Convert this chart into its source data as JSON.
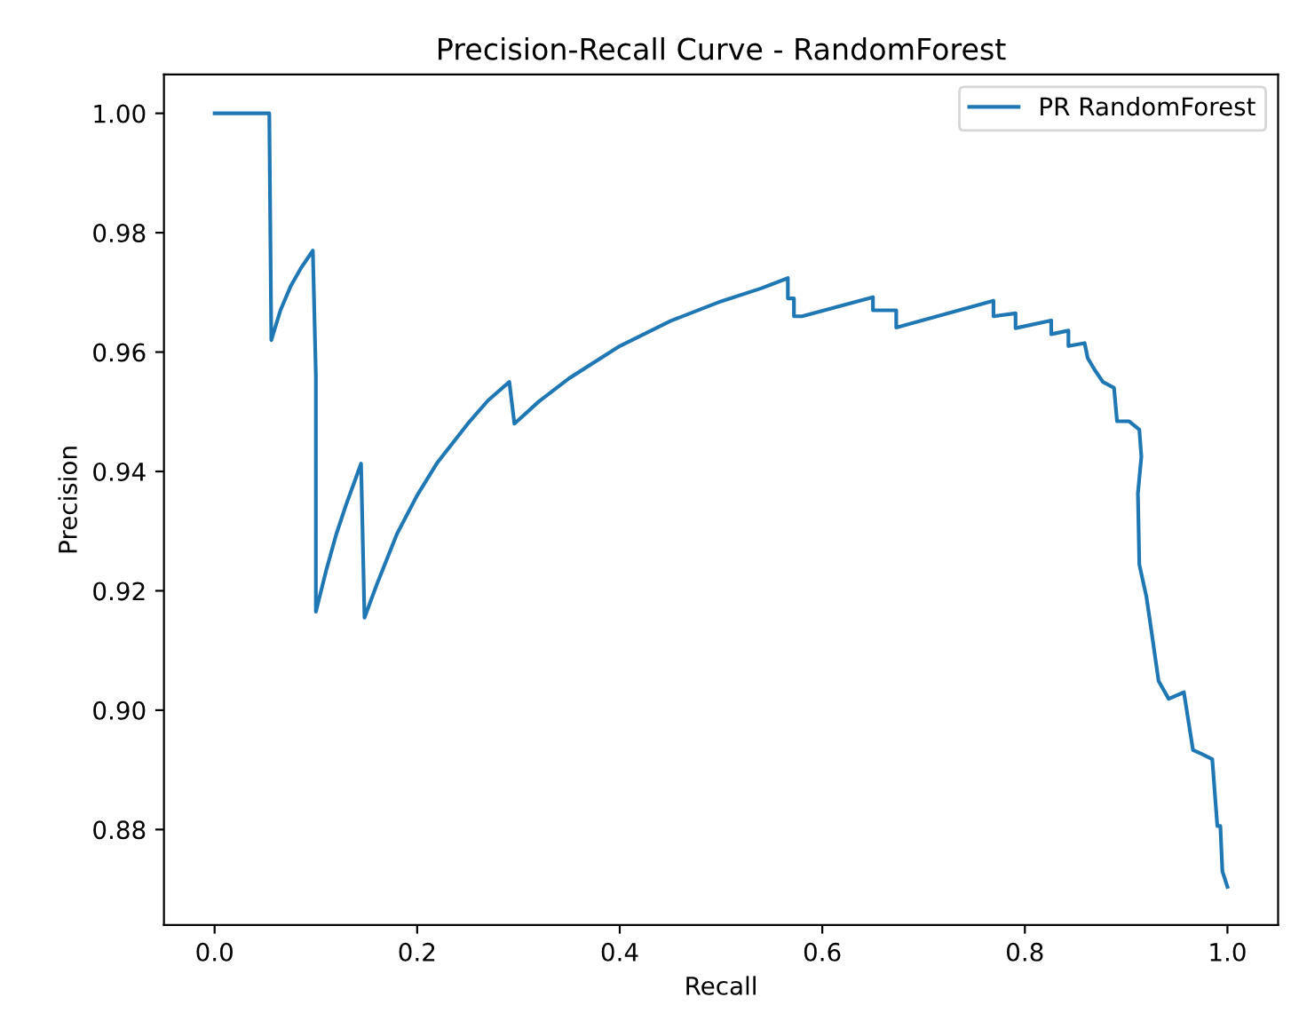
{
  "chart_data": {
    "type": "line",
    "title": "Precision-Recall Curve - RandomForest",
    "xlabel": "Recall",
    "ylabel": "Precision",
    "xlim": [
      -0.05,
      1.05
    ],
    "ylim": [
      0.864,
      1.0065
    ],
    "xticks": [
      {
        "value": 0.0,
        "label": "0.0"
      },
      {
        "value": 0.2,
        "label": "0.2"
      },
      {
        "value": 0.4,
        "label": "0.4"
      },
      {
        "value": 0.6,
        "label": "0.6"
      },
      {
        "value": 0.8,
        "label": "0.8"
      },
      {
        "value": 1.0,
        "label": "1.0"
      }
    ],
    "yticks": [
      {
        "value": 0.88,
        "label": "0.88"
      },
      {
        "value": 0.9,
        "label": "0.90"
      },
      {
        "value": 0.92,
        "label": "0.92"
      },
      {
        "value": 0.94,
        "label": "0.94"
      },
      {
        "value": 0.96,
        "label": "0.96"
      },
      {
        "value": 0.98,
        "label": "0.98"
      },
      {
        "value": 1.0,
        "label": "1.00"
      }
    ],
    "grid": false,
    "legend": "top right",
    "marker": "none",
    "line_style": "solid",
    "series": [
      {
        "name": "PR RandomForest",
        "color": "#1f77b4",
        "x": [
          0.0,
          0.054,
          0.056,
          0.065,
          0.075,
          0.085,
          0.097,
          0.1,
          0.1,
          0.11,
          0.12,
          0.13,
          0.1446,
          0.148,
          0.16,
          0.18,
          0.2,
          0.22,
          0.25,
          0.27,
          0.291,
          0.296,
          0.32,
          0.35,
          0.4,
          0.45,
          0.5,
          0.54,
          0.566,
          0.566,
          0.572,
          0.572,
          0.58,
          0.58,
          0.65,
          0.65,
          0.673,
          0.673,
          0.769,
          0.769,
          0.7908,
          0.7908,
          0.826,
          0.826,
          0.843,
          0.843,
          0.859,
          0.862,
          0.869,
          0.877,
          0.888,
          0.891,
          0.903,
          0.913,
          0.915,
          0.9116,
          0.913,
          0.92,
          0.925,
          0.932,
          0.942,
          0.957,
          0.966,
          0.974,
          0.985,
          0.99,
          0.993,
          0.995,
          1.0
        ],
        "values": [
          1.0,
          1.0,
          0.962,
          0.967,
          0.971,
          0.974,
          0.977,
          0.956,
          0.9165,
          0.9233,
          0.9294,
          0.9345,
          0.9413,
          0.9155,
          0.921,
          0.9295,
          0.936,
          0.9415,
          0.948,
          0.9519,
          0.955,
          0.948,
          0.9517,
          0.9556,
          0.961,
          0.9652,
          0.9685,
          0.9707,
          0.9724,
          0.969,
          0.969,
          0.966,
          0.966,
          0.966,
          0.9692,
          0.967,
          0.967,
          0.9641,
          0.9686,
          0.966,
          0.9665,
          0.964,
          0.9653,
          0.963,
          0.9636,
          0.961,
          0.9615,
          0.959,
          0.957,
          0.955,
          0.954,
          0.9484,
          0.9484,
          0.947,
          0.9425,
          0.9363,
          0.9244,
          0.919,
          0.9132,
          0.9049,
          0.9019,
          0.903,
          0.8933,
          0.8927,
          0.8918,
          0.8806,
          0.8806,
          0.873,
          0.8704
        ]
      }
    ]
  }
}
